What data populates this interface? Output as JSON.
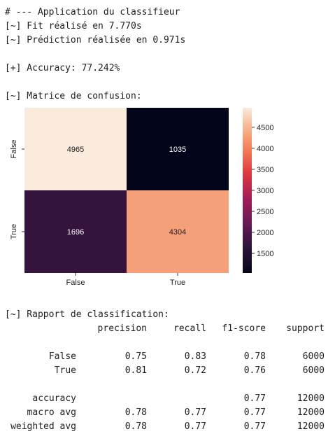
{
  "log": {
    "line1": "# --- Application du classifieur",
    "line2": "[~] Fit réalisé en 7.770s",
    "line3": "[~] Prédiction réalisée en 0.971s",
    "line4": "[+] Accuracy: 77.242%",
    "line5": "[~] Matrice de confusion:",
    "line6": "[~] Rapport de classification:"
  },
  "chart_data": {
    "type": "heatmap",
    "x_labels": [
      "False",
      "True"
    ],
    "y_labels": [
      "False",
      "True"
    ],
    "values": [
      [
        4965,
        1035
      ],
      [
        1696,
        4304
      ]
    ],
    "colorbar": {
      "min": 1035,
      "max": 4965,
      "ticks": [
        1500,
        2000,
        2500,
        3000,
        3500,
        4000,
        4500
      ],
      "tick_labels": [
        "1500",
        "2000",
        "2500",
        "3000",
        "3500",
        "4000",
        "4500"
      ]
    },
    "colormap": "rocket",
    "title": "",
    "xlabel": "",
    "ylabel": ""
  },
  "report": {
    "headers": [
      "precision",
      "recall",
      "f1-score",
      "support"
    ],
    "rows": [
      {
        "label": "False",
        "precision": "0.75",
        "recall": "0.83",
        "f1": "0.78",
        "support": "6000"
      },
      {
        "label": "True",
        "precision": "0.81",
        "recall": "0.72",
        "f1": "0.76",
        "support": "6000"
      },
      {
        "label": "accuracy",
        "precision": "",
        "recall": "",
        "f1": "0.77",
        "support": "12000"
      },
      {
        "label": "macro avg",
        "precision": "0.78",
        "recall": "0.77",
        "f1": "0.77",
        "support": "12000"
      },
      {
        "label": "weighted avg",
        "precision": "0.78",
        "recall": "0.77",
        "f1": "0.77",
        "support": "12000"
      }
    ]
  }
}
